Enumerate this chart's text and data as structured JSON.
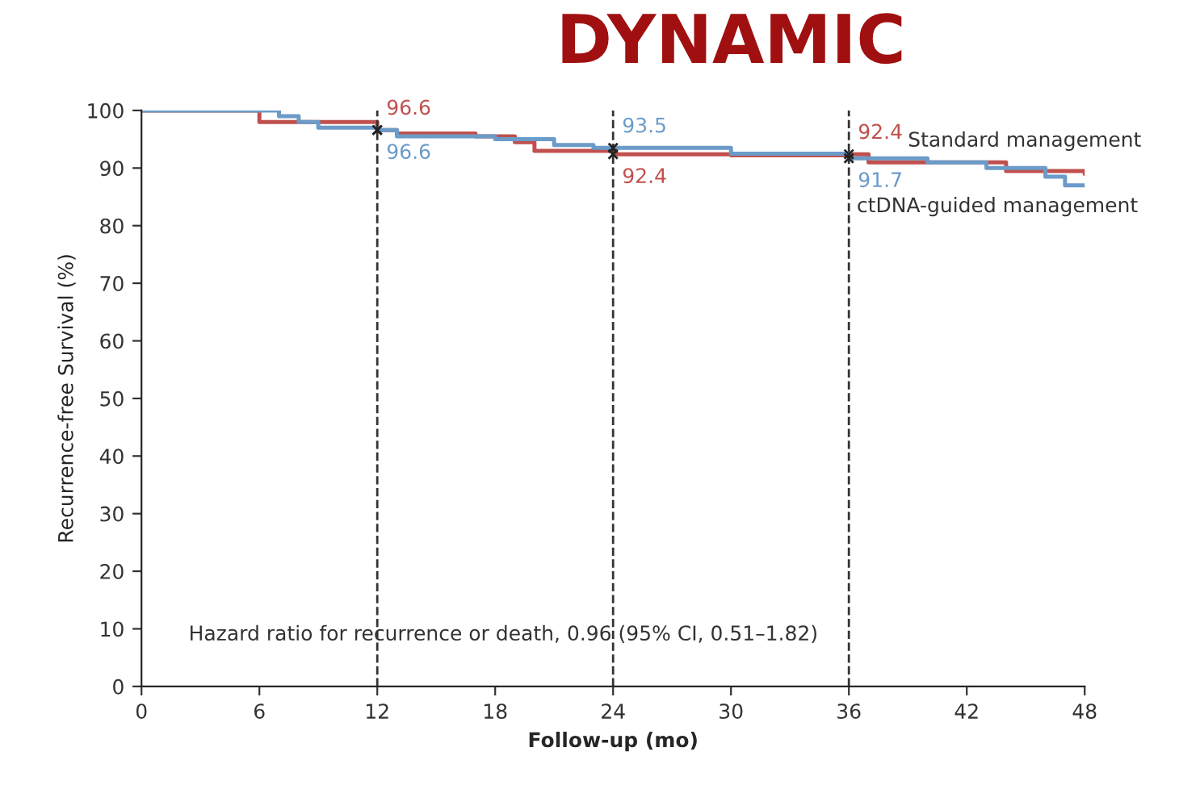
{
  "chart_data": {
    "type": "step",
    "title": "DYNAMIC",
    "xlabel": "Follow-up (mo)",
    "ylabel": "Recurrence-free Survival (%)",
    "xlim": [
      0,
      48
    ],
    "ylim": [
      0,
      100
    ],
    "xticks": [
      0,
      6,
      12,
      18,
      24,
      30,
      36,
      42,
      48
    ],
    "yticks": [
      0,
      10,
      20,
      30,
      40,
      50,
      60,
      70,
      80,
      90,
      100
    ],
    "grid": false,
    "legend": false,
    "series": [
      {
        "name": "Standard management",
        "color": "#c0504d",
        "x": [
          0,
          6,
          12,
          13,
          17,
          19,
          20,
          24,
          30,
          36,
          37,
          43,
          44,
          48
        ],
        "values": [
          100,
          98,
          96.6,
          96,
          95.5,
          94.5,
          93,
          92.4,
          92.2,
          92.4,
          91,
          91,
          89.5,
          89
        ]
      },
      {
        "name": "ctDNA-guided management",
        "color": "#6b9bc9",
        "x": [
          0,
          7,
          8,
          9,
          12,
          13,
          18,
          21,
          23,
          24,
          30,
          36,
          40,
          43,
          46,
          47,
          48
        ],
        "values": [
          100,
          99,
          98,
          97,
          96.6,
          95.5,
          95,
          94,
          93.5,
          93.5,
          92.5,
          91.7,
          91,
          90,
          88.5,
          87,
          87
        ]
      }
    ],
    "ref_lines": [
      {
        "axis": "x",
        "value": 12,
        "line_style": "dashed"
      },
      {
        "axis": "x",
        "value": 24,
        "line_style": "dashed"
      },
      {
        "axis": "x",
        "value": 36,
        "line_style": "dashed"
      }
    ],
    "annotations": [
      {
        "text": "96.6",
        "x": 12,
        "y": 96.6
      },
      {
        "text": "96.6",
        "x": 12,
        "y": 96.6
      },
      {
        "text": "93.5",
        "x": 24,
        "y": 93.5
      },
      {
        "text": "92.4",
        "x": 24,
        "y": 92.4
      },
      {
        "text": "92.4",
        "x": 36,
        "y": 92.4
      },
      {
        "text": "91.7",
        "x": 36,
        "y": 91.7
      },
      "Hazard ratio for recurrence or death, 0.96 (95% CI, 0.51–1.82)"
    ]
  }
}
